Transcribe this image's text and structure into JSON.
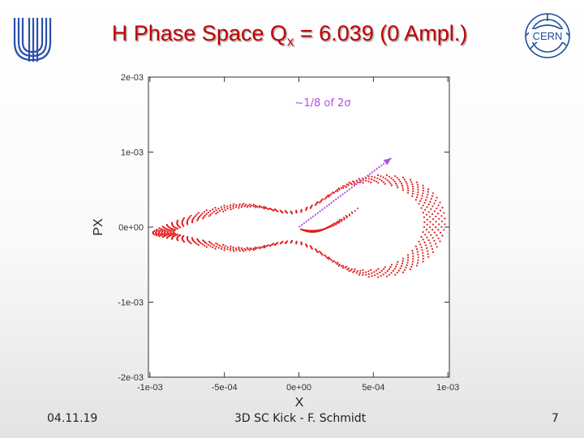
{
  "slide": {
    "title_main": "H Phase Space Q",
    "title_sub": "x",
    "title_rest": " = 6.039 (0 Ampl.)",
    "footer_date": "04.11.19",
    "footer_center": "3D SC Kick - F. Schmidt",
    "page_number": "7",
    "logos": [
      {
        "name": "university-u-logo",
        "color": "#2a4fb0"
      },
      {
        "name": "cern-logo",
        "text": "CERN",
        "color": "#1f4f9a"
      }
    ]
  },
  "chart_data": {
    "type": "scatter",
    "xlabel": "X",
    "ylabel": "PX",
    "xlim": [
      -0.00101,
      0.00101
    ],
    "ylim": [
      -0.002,
      0.002
    ],
    "x_ticks": [
      {
        "value": -0.001,
        "label": "-1e-03"
      },
      {
        "value": -0.0005,
        "label": "-5e-04"
      },
      {
        "value": 0,
        "label": "0e+00"
      },
      {
        "value": 0.0005,
        "label": "5e-04"
      },
      {
        "value": 0.001,
        "label": "1e-03"
      }
    ],
    "y_ticks": [
      {
        "value": 0.002,
        "label": "2e-03"
      },
      {
        "value": 0.001,
        "label": "1e-03"
      },
      {
        "value": 0,
        "label": "0e+00"
      },
      {
        "value": -0.001,
        "label": "-1e-03"
      },
      {
        "value": -0.002,
        "label": "-2e-03"
      }
    ],
    "grid": false,
    "point_color": "#e21b1b",
    "series": [
      {
        "turns": 8,
        "points_per_turn": 85,
        "loop_shape": {
          "x_amplitude": 0.00098,
          "y_amplitude": 0.00096,
          "tilt": 0.45,
          "waist": 0.62
        },
        "turn_scale_range": [
          0.86,
          1.0
        ],
        "trapped_start": [
          1.5e-05,
          -3e-05
        ]
      }
    ],
    "annotation": {
      "text": "~1/8 of 2σ",
      "color": "#b04fe0",
      "arrow_from": [
        0.0,
        0.0
      ],
      "arrow_to": [
        0.00062,
        0.00092
      ]
    }
  }
}
